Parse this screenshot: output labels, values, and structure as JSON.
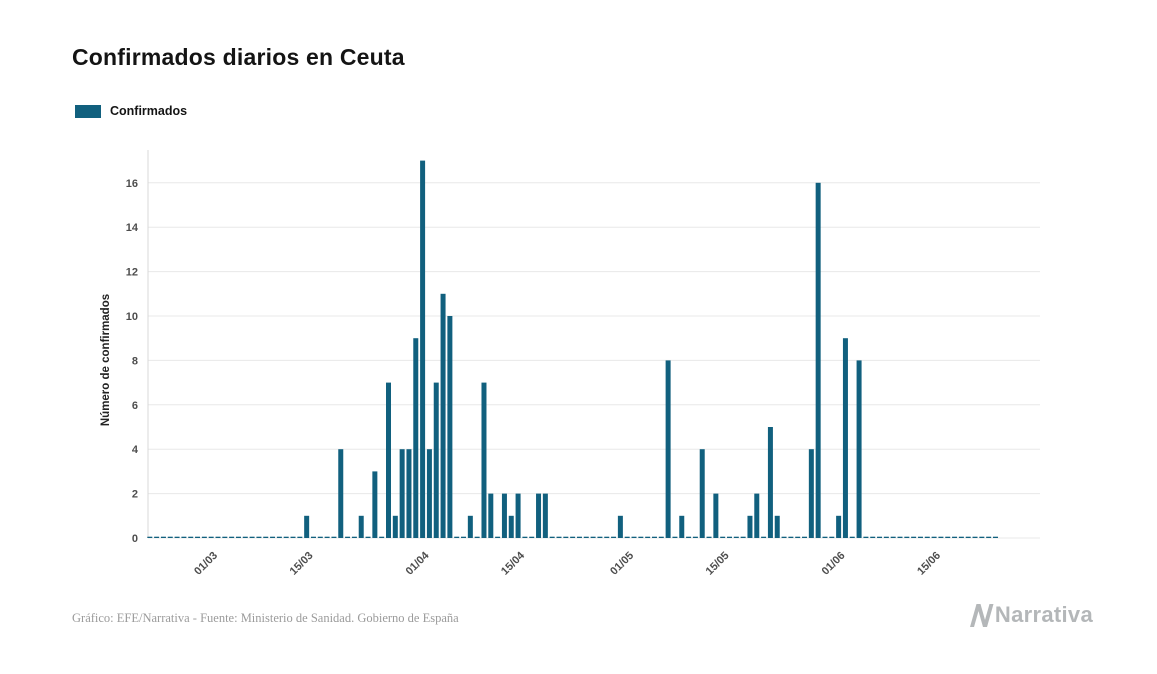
{
  "title": "Confirmados diarios en Ceuta",
  "legend": {
    "label": "Confirmados"
  },
  "footer": {
    "source": "Gráfico: EFE/Narrativa - Fuente: Ministerio de Sanidad. Gobierno de España",
    "brand": "Narrativa"
  },
  "colors": {
    "bar": "#11607E",
    "grid": "#e8e8e8",
    "axis_line": "#d9d9d9",
    "axis_text": "#4d4d4d",
    "title_text": "#141414",
    "footer_text": "#9b9b9b",
    "brand_gray": "#b4b7b9"
  },
  "chart_data": {
    "type": "bar",
    "title": "Confirmados diarios en Ceuta",
    "ylabel": "Número de confirmados",
    "xlabel": "",
    "legend": [
      "Confirmados"
    ],
    "legend_position": "top-left",
    "grid": "horizontal",
    "y_ticks": [
      0,
      2,
      4,
      6,
      8,
      10,
      12,
      14,
      16
    ],
    "ylim": [
      0,
      17
    ],
    "x_tick_labels": [
      "01/03",
      "15/03",
      "01/04",
      "15/04",
      "01/05",
      "15/05",
      "01/06",
      "15/06"
    ],
    "date_range": {
      "start": "20/02",
      "end": "23/06"
    },
    "unlisted_days_value": 0,
    "bar_color": "#11607E",
    "bars": [
      {
        "date": "14/03",
        "value": 1
      },
      {
        "date": "19/03",
        "value": 4
      },
      {
        "date": "22/03",
        "value": 1
      },
      {
        "date": "24/03",
        "value": 3
      },
      {
        "date": "26/03",
        "value": 7
      },
      {
        "date": "27/03",
        "value": 1
      },
      {
        "date": "28/03",
        "value": 4
      },
      {
        "date": "29/03",
        "value": 4
      },
      {
        "date": "30/03",
        "value": 9
      },
      {
        "date": "31/03",
        "value": 17
      },
      {
        "date": "01/04",
        "value": 4
      },
      {
        "date": "02/04",
        "value": 7
      },
      {
        "date": "03/04",
        "value": 11
      },
      {
        "date": "04/04",
        "value": 10
      },
      {
        "date": "07/04",
        "value": 1
      },
      {
        "date": "09/04",
        "value": 7
      },
      {
        "date": "10/04",
        "value": 2
      },
      {
        "date": "12/04",
        "value": 2
      },
      {
        "date": "13/04",
        "value": 1
      },
      {
        "date": "14/04",
        "value": 2
      },
      {
        "date": "17/04",
        "value": 2
      },
      {
        "date": "18/04",
        "value": 2
      },
      {
        "date": "29/04",
        "value": 1
      },
      {
        "date": "06/05",
        "value": 8
      },
      {
        "date": "08/05",
        "value": 1
      },
      {
        "date": "11/05",
        "value": 4
      },
      {
        "date": "13/05",
        "value": 2
      },
      {
        "date": "18/05",
        "value": 1
      },
      {
        "date": "19/05",
        "value": 2
      },
      {
        "date": "21/05",
        "value": 5
      },
      {
        "date": "22/05",
        "value": 1
      },
      {
        "date": "27/05",
        "value": 4
      },
      {
        "date": "28/05",
        "value": 16
      },
      {
        "date": "31/05",
        "value": 1
      },
      {
        "date": "01/06",
        "value": 9
      },
      {
        "date": "03/06",
        "value": 8
      }
    ]
  }
}
